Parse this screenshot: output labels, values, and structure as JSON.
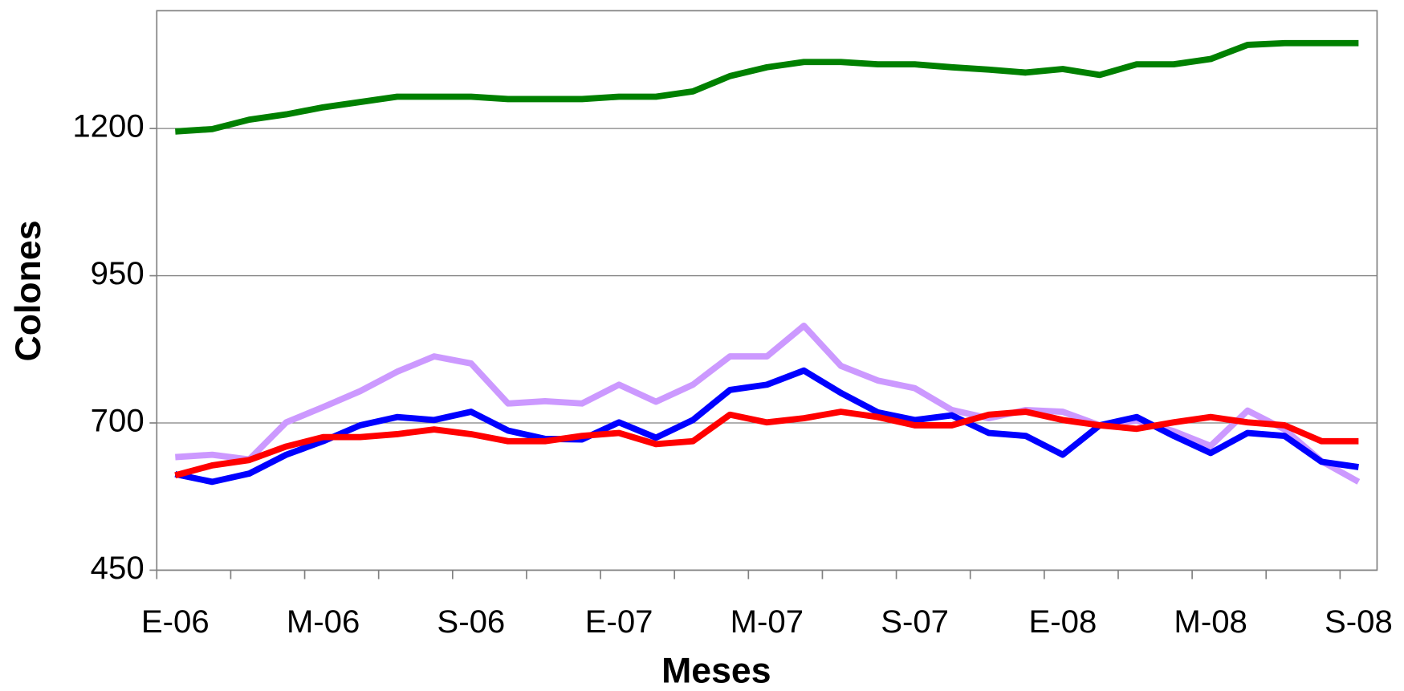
{
  "chart_data": {
    "type": "line",
    "x_label": "Meses",
    "y_label": "Colones",
    "categories": [
      "E-06",
      null,
      null,
      null,
      "M-06",
      null,
      null,
      null,
      "S-06",
      null,
      null,
      null,
      "E-07",
      null,
      null,
      null,
      "M-07",
      null,
      null,
      null,
      "S-07",
      null,
      null,
      null,
      "E-08",
      null,
      null,
      null,
      "M-08",
      null,
      null,
      null,
      "S-08"
    ],
    "ylim": [
      450,
      1400
    ],
    "yticks": [
      450,
      700,
      950,
      1200
    ],
    "grid": true,
    "series": [
      {
        "color": "#008000",
        "values": [
          1195,
          1199,
          1215,
          1224,
          1236,
          1245,
          1254,
          1254,
          1254,
          1250,
          1250,
          1250,
          1254,
          1254,
          1263,
          1289,
          1304,
          1313,
          1313,
          1309,
          1309,
          1304,
          1300,
          1295,
          1301,
          1291,
          1309,
          1309,
          1318,
          1342,
          1345,
          1345,
          1345
        ]
      },
      {
        "color": "#cc99ff",
        "values": [
          642,
          646,
          638,
          701,
          727,
          754,
          787,
          813,
          801,
          733,
          737,
          733,
          765,
          736,
          765,
          813,
          813,
          865,
          797,
          772,
          759,
          722,
          708,
          722,
          719,
          696,
          704,
          686,
          661,
          721,
          689,
          635,
          600
        ]
      },
      {
        "color": "#0000ff",
        "values": [
          613,
          600,
          614,
          646,
          669,
          696,
          710,
          705,
          719,
          687,
          673,
          672,
          701,
          675,
          705,
          756,
          765,
          789,
          751,
          718,
          705,
          713,
          683,
          678,
          646,
          696,
          710,
          678,
          649,
          683,
          678,
          634,
          625
        ]
      },
      {
        "color": "#ff0000",
        "values": [
          611,
          628,
          637,
          660,
          676,
          676,
          681,
          689,
          681,
          669,
          669,
          678,
          683,
          664,
          669,
          714,
          701,
          708,
          719,
          710,
          696,
          696,
          714,
          719,
          705,
          696,
          690,
          701,
          710,
          701,
          696,
          669,
          669
        ]
      }
    ]
  }
}
